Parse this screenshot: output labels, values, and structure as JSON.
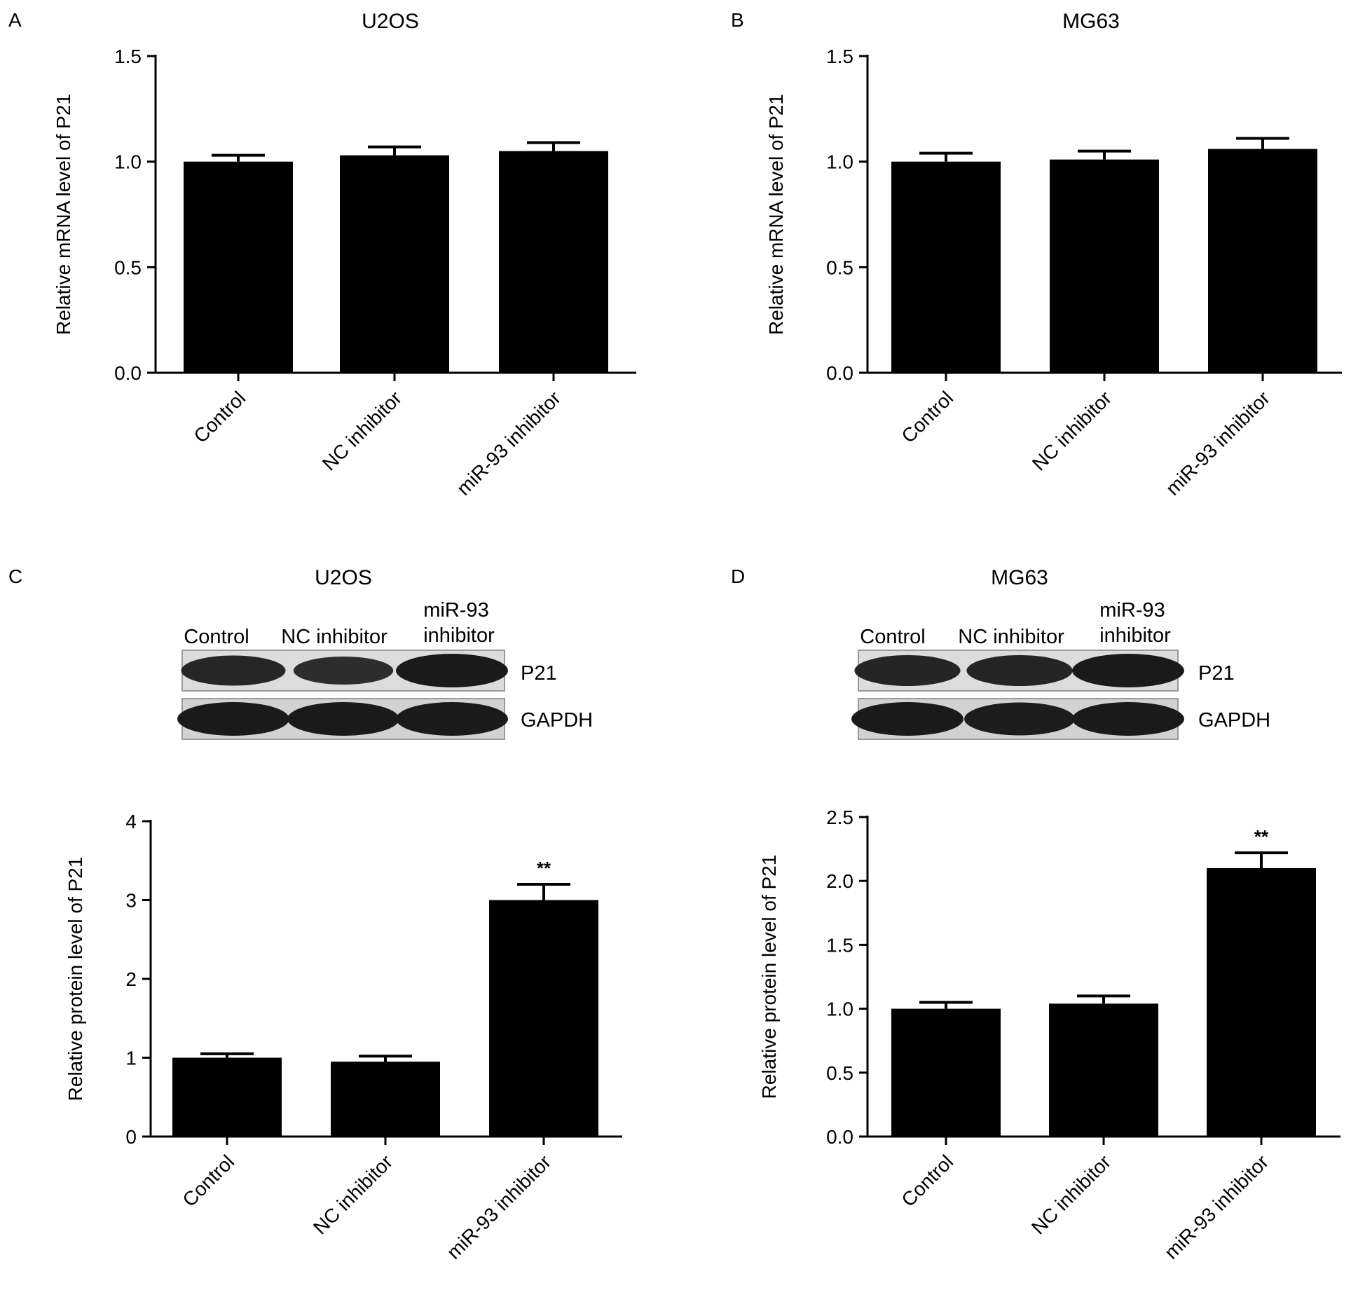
{
  "panels": {
    "A": {
      "letter": "A",
      "title": "U2OS"
    },
    "B": {
      "letter": "B",
      "title": "MG63"
    },
    "C": {
      "letter": "C",
      "title": "U2OS"
    },
    "D": {
      "letter": "D",
      "title": "MG63"
    }
  },
  "blots": [
    {
      "panel": "C",
      "lanes": [
        "Control",
        "NC inhibitor",
        "miR-93\ninhibitor"
      ],
      "rows": [
        "P21",
        "GAPDH"
      ],
      "intensity": {
        "P21": [
          0.75,
          0.6,
          1.0
        ],
        "GAPDH": [
          1.0,
          1.0,
          1.0
        ]
      }
    },
    {
      "panel": "D",
      "lanes": [
        "Control",
        "NC inhibitor",
        "miR-93\ninhibitor"
      ],
      "rows": [
        "P21",
        "GAPDH"
      ],
      "intensity": {
        "P21": [
          0.8,
          0.8,
          1.0
        ],
        "GAPDH": [
          1.0,
          0.95,
          1.0
        ]
      }
    }
  ],
  "chart_data": [
    {
      "panel": "A",
      "type": "bar",
      "title": "U2OS",
      "ylabel": "Relative mRNA level of P21",
      "categories": [
        "Control",
        "NC inhibitor",
        "miR-93 inhibitor"
      ],
      "values": [
        1.0,
        1.03,
        1.05
      ],
      "errors": [
        0.03,
        0.04,
        0.04
      ],
      "annotations": [
        "",
        "",
        ""
      ],
      "ylim": [
        0,
        1.5
      ],
      "yticks": [
        "0.0",
        "0.5",
        "1.0",
        "1.5"
      ]
    },
    {
      "panel": "B",
      "type": "bar",
      "title": "MG63",
      "ylabel": "Relative mRNA level of P21",
      "categories": [
        "Control",
        "NC inhibitor",
        "miR-93 inhibitor"
      ],
      "values": [
        1.0,
        1.01,
        1.06
      ],
      "errors": [
        0.04,
        0.04,
        0.05
      ],
      "annotations": [
        "",
        "",
        ""
      ],
      "ylim": [
        0,
        1.5
      ],
      "yticks": [
        "0.0",
        "0.5",
        "1.0",
        "1.5"
      ]
    },
    {
      "panel": "C",
      "type": "bar",
      "title": "",
      "ylabel": "Relative protein level of P21",
      "categories": [
        "Control",
        "NC inhibitor",
        "miR-93 inhibitor"
      ],
      "values": [
        1.0,
        0.95,
        3.0
      ],
      "errors": [
        0.05,
        0.07,
        0.2
      ],
      "annotations": [
        "",
        "",
        "**"
      ],
      "ylim": [
        0,
        4
      ],
      "yticks": [
        "0",
        "1",
        "2",
        "3",
        "4"
      ]
    },
    {
      "panel": "D",
      "type": "bar",
      "title": "",
      "ylabel": "Relative protein level of P21",
      "categories": [
        "Control",
        "NC inhibitor",
        "miR-93 inhibitor"
      ],
      "values": [
        1.0,
        1.04,
        2.1
      ],
      "errors": [
        0.05,
        0.06,
        0.12
      ],
      "annotations": [
        "",
        "",
        "**"
      ],
      "ylim": [
        0,
        2.5
      ],
      "yticks": [
        "0.0",
        "0.5",
        "1.0",
        "1.5",
        "2.0",
        "2.5"
      ]
    }
  ]
}
